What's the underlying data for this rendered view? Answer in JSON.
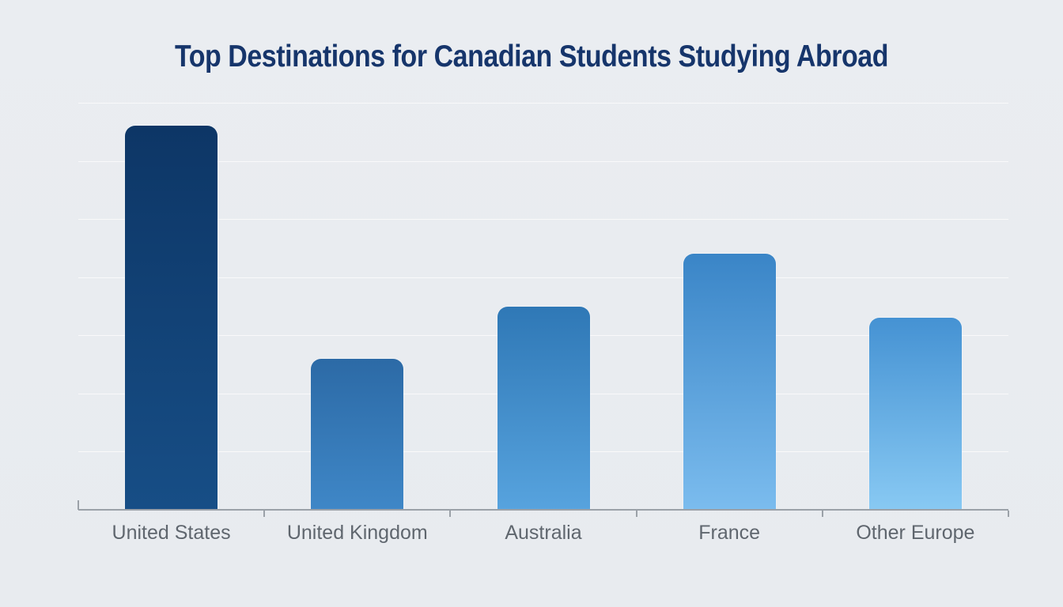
{
  "title": "Top Destinations for Canadian Students Studying Abroad",
  "chart_data": {
    "type": "bar",
    "title": "Top Destinations for Canadian Students Studying Abroad",
    "categories": [
      "United States",
      "United Kingdom",
      "Australia",
      "France",
      "Other Europe"
    ],
    "values": [
      6.6,
      2.6,
      3.5,
      4.4,
      3.3
    ],
    "value_scale": "relative units; 1 unit = one horizontal gridline interval (chart displays no numeric axis labels or data labels)",
    "xlabel": "",
    "ylabel": "",
    "ylim": [
      0,
      7
    ],
    "grid": "horizontal",
    "gridline_count": 7,
    "legend": "none",
    "bar_gradients": [
      {
        "top": "#0d3666",
        "bottom": "#174e86"
      },
      {
        "top": "#2c6aa6",
        "bottom": "#3f87c7"
      },
      {
        "top": "#2f78b6",
        "bottom": "#57a3de"
      },
      {
        "top": "#3a85c7",
        "bottom": "#7bbcee"
      },
      {
        "top": "#4592d3",
        "bottom": "#88c9f3"
      }
    ]
  },
  "colors": {
    "background": "#e9ecf0",
    "title_text": "#16356b",
    "axis_label_text": "#5f666e",
    "gridline": "#d5d8dc",
    "axis_line": "#9ba1a8"
  }
}
